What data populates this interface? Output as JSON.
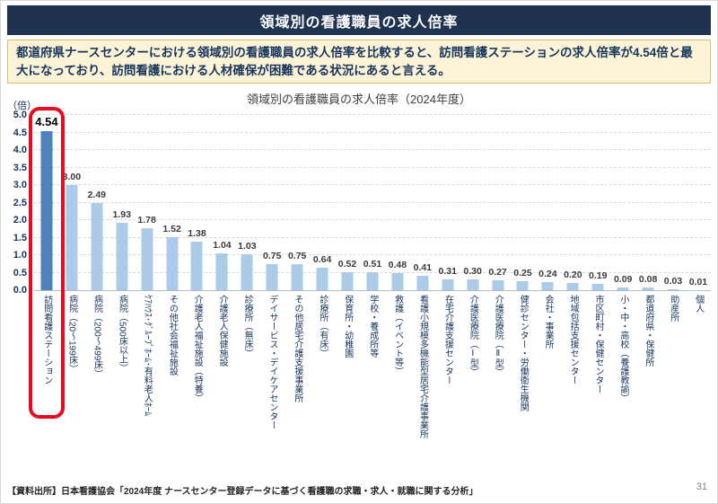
{
  "header": {
    "title": "領域別の看護職員の求人倍率"
  },
  "summary": {
    "text": "都道府県ナースセンターにおける領域別の看護職員の求人倍率を比較すると、訪問看護ステーションの求人倍率が4.54倍と最大になっており、訪問看護における人材確保が困難である状況にあると言える。"
  },
  "chart_data": {
    "type": "bar",
    "title": "領域別の看護職員の求人倍率（2024年度）",
    "unit_label": "（倍）",
    "ylabel": "求人倍率（倍）",
    "xlabel": "",
    "ylim": [
      0,
      5.0
    ],
    "ytick_step": 0.5,
    "grid": "horizontal-dashed",
    "legend": "none",
    "categories": [
      "訪問看護ステーション",
      "病院（20～199床）",
      "病院（200～499床）",
      "病院（500床以上）",
      "ｹｱﾊｳｽ･ｸﾞﾙｰﾌﾟﾎｰﾑ･有料老人ﾎｰﾑ",
      "その他社会福祉施設",
      "介護老人福祉施設（特養）",
      "介護老人保健施設",
      "診療所（無床）",
      "デイサービス・デイケアセンター",
      "その他居宅介護支援事業所",
      "診療所（有床）",
      "保育所・幼稚園",
      "学校・養成所等",
      "救護（イベント等）",
      "看護小規模多機能型居宅介護事業所",
      "在宅介護支援センター",
      "介護医療院（Ⅰ型）",
      "介護医療院（Ⅱ型）",
      "健診センター・労働衛生機関",
      "会社・事業所",
      "地域包括支援センター",
      "市区町村・保健センター",
      "小・中・高校（養護教諭）",
      "都道府県・保健所",
      "助産所",
      "個人"
    ],
    "values": [
      4.54,
      3.0,
      2.49,
      1.93,
      1.78,
      1.52,
      1.38,
      1.04,
      1.03,
      0.75,
      0.75,
      0.64,
      0.52,
      0.51,
      0.48,
      0.41,
      0.31,
      0.3,
      0.27,
      0.25,
      0.24,
      0.2,
      0.19,
      0.09,
      0.08,
      0.03,
      0.01
    ],
    "bar_color": "#abcbe8",
    "highlight": {
      "index": 0,
      "bar_color": "#4e81bd",
      "box_color": "#e60b1e"
    }
  },
  "footer": {
    "source": "【資料出所】日本看護協会「2024年度 ナースセンター登録データに基づく看護職の求職・求人・就職に関する分析」",
    "page_number": "31"
  }
}
